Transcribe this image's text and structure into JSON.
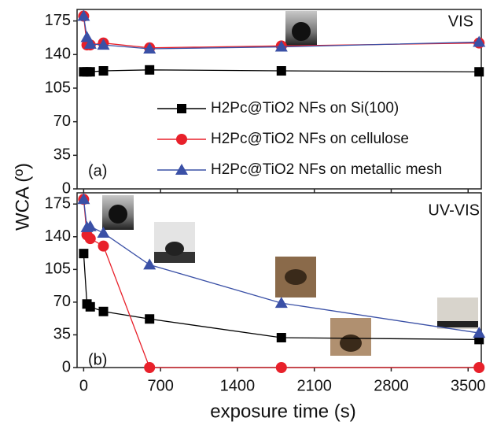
{
  "chart_data": [
    {
      "type": "line",
      "label": "VIS",
      "panel": "(a)",
      "ylabel": "WCA (º)",
      "x": [
        0,
        30,
        60,
        180,
        600,
        1800,
        3600
      ],
      "xlim": [
        -60,
        3620
      ],
      "ylim": [
        0,
        187
      ],
      "yticks": [
        0,
        35,
        70,
        105,
        140,
        175
      ],
      "series": [
        {
          "name": "H2Pc@TiO2 NFs on Si(100)",
          "color": "#000000",
          "marker": "square",
          "values": [
            122,
            122,
            122,
            123,
            124,
            123,
            122
          ]
        },
        {
          "name": "H2Pc@TiO2 NFs on cellulose",
          "color": "#e8202a",
          "marker": "circle",
          "values": [
            180,
            150,
            150,
            152,
            147,
            149,
            152
          ]
        },
        {
          "name": "H2Pc@TiO2 NFs on metallic mesh",
          "color": "#3a50a6",
          "marker": "triangle",
          "values": [
            180,
            158,
            151,
            150,
            146,
            148,
            153
          ]
        }
      ]
    },
    {
      "type": "line",
      "label": "UV-VIS",
      "panel": "(b)",
      "xlabel": "exposure time (s)",
      "x": [
        0,
        30,
        60,
        180,
        600,
        1800,
        3600
      ],
      "xlim": [
        -60,
        3620
      ],
      "xticks": [
        0,
        700,
        1400,
        2100,
        2800,
        3500
      ],
      "ylim": [
        0,
        187
      ],
      "yticks": [
        0,
        35,
        70,
        105,
        140,
        175
      ],
      "series": [
        {
          "color": "#000000",
          "marker": "square",
          "values": [
            122,
            68,
            65,
            60,
            52,
            32,
            30
          ]
        },
        {
          "color": "#e8202a",
          "marker": "circle",
          "values": [
            180,
            142,
            138,
            130,
            0,
            0,
            0
          ]
        },
        {
          "color": "#3a50a6",
          "marker": "triangle",
          "values": [
            180,
            150,
            151,
            144,
            110,
            69,
            37
          ]
        }
      ]
    }
  ]
}
